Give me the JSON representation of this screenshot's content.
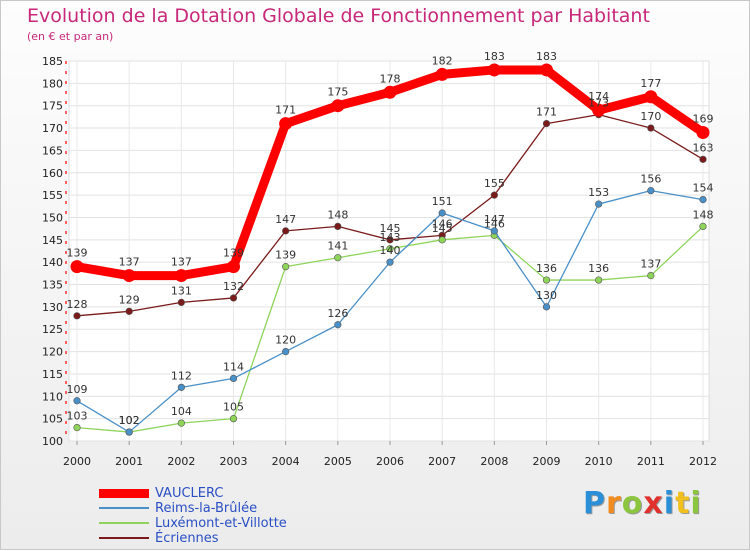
{
  "title": "Evolution de la Dotation Globale de Fonctionnement par Habitant",
  "subtitle": "(en € et par an)",
  "logo_text": "Proxiti",
  "chart_data": {
    "type": "line",
    "title": "Evolution de la Dotation Globale de Fonctionnement par Habitant",
    "ylabel": "(en € et par an)",
    "xlabel": "",
    "x": [
      "2000",
      "2001",
      "2002",
      "2003",
      "2004",
      "2005",
      "2006",
      "2007",
      "2008",
      "2009",
      "2010",
      "2011",
      "2012"
    ],
    "ylim": [
      100,
      185
    ],
    "yticks": [
      100,
      105,
      110,
      115,
      120,
      125,
      130,
      135,
      140,
      145,
      150,
      155,
      160,
      165,
      170,
      175,
      180,
      185
    ],
    "grid": true,
    "legend_position": "bottom-left",
    "series": [
      {
        "name": "VAUCLERC",
        "color": "#ff0000",
        "values": [
          139,
          137,
          137,
          139,
          171,
          175,
          178,
          182,
          183,
          183,
          174,
          177,
          169
        ]
      },
      {
        "name": "Reims-la-Brûlée",
        "color": "#4a90c8",
        "values": [
          109,
          102,
          112,
          114,
          120,
          126,
          140,
          151,
          147,
          130,
          153,
          156,
          154
        ]
      },
      {
        "name": "Luxémont-et-Villotte",
        "color": "#8ed45a",
        "values": [
          103,
          102,
          104,
          105,
          139,
          141,
          143,
          145,
          146,
          136,
          136,
          137,
          148
        ]
      },
      {
        "name": "Écriennes",
        "color": "#7a1a1a",
        "values": [
          128,
          129,
          131,
          132,
          147,
          148,
          145,
          146,
          155,
          171,
          173,
          170,
          163
        ]
      }
    ]
  }
}
